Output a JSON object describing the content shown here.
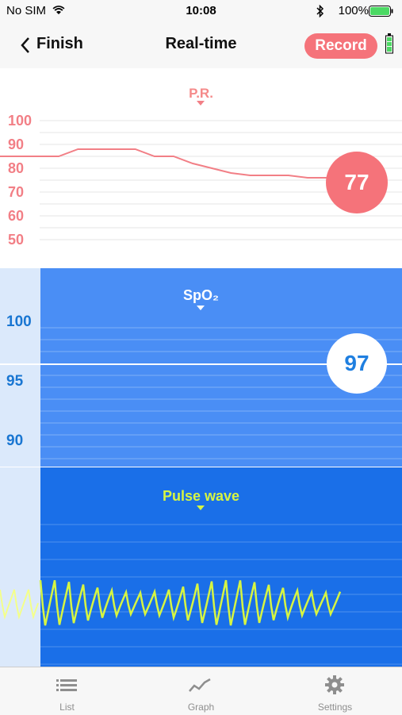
{
  "status": {
    "carrier": "No SIM",
    "time": "10:08",
    "battery": "100%"
  },
  "nav": {
    "back_label": "Finish",
    "title": "Real-time",
    "record_label": "Record"
  },
  "pr": {
    "label": "P.R.",
    "ticks": [
      "100",
      "90",
      "80",
      "70",
      "60",
      "50"
    ],
    "value": "77",
    "color": "#f5737a",
    "trend": [
      85,
      85,
      88,
      88,
      88,
      88,
      85,
      85,
      82,
      80,
      78,
      77,
      77,
      77,
      76,
      76
    ],
    "ylim": [
      45,
      105
    ]
  },
  "spo2": {
    "label": "SpO₂",
    "ticks": [
      "100",
      "95",
      "90"
    ],
    "value": "97",
    "color": "#4a8ef5"
  },
  "pulse": {
    "label": "Pulse wave",
    "color": "#d6f542"
  },
  "tabs": [
    {
      "label": "List",
      "icon": "list-icon"
    },
    {
      "label": "Graph",
      "icon": "graph-icon"
    },
    {
      "label": "Settings",
      "icon": "gear-icon"
    }
  ]
}
